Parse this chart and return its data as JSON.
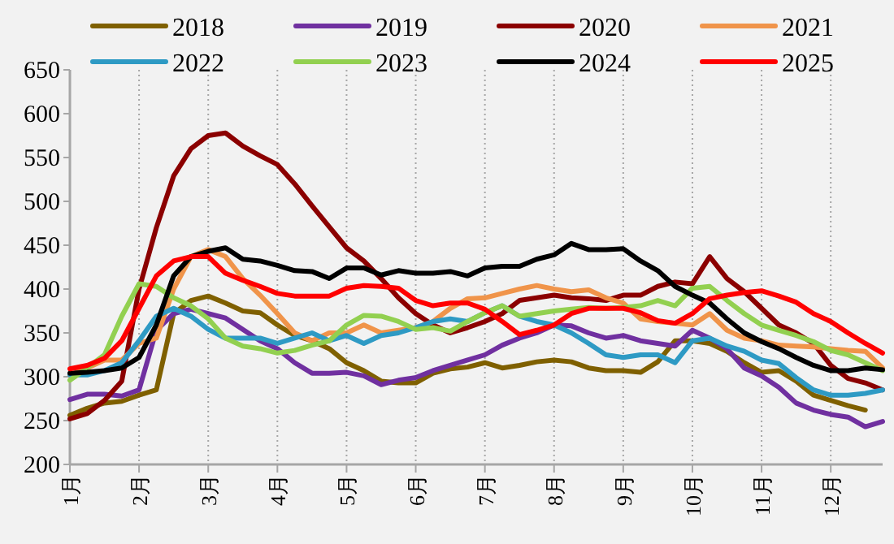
{
  "chart_data": {
    "type": "line",
    "x": [
      1,
      1.25,
      1.5,
      1.75,
      2,
      2.25,
      2.5,
      2.75,
      3,
      3.25,
      3.5,
      3.75,
      4,
      4.25,
      4.5,
      4.75,
      5,
      5.25,
      5.5,
      5.75,
      6,
      6.25,
      6.5,
      6.75,
      7,
      7.25,
      7.5,
      7.75,
      8,
      8.25,
      8.5,
      8.75,
      9,
      9.25,
      9.5,
      9.75,
      10,
      10.25,
      10.5,
      10.75,
      11,
      11.25,
      11.5,
      11.75,
      12,
      12.25,
      12.5,
      12.75
    ],
    "xlim": [
      1,
      12.75
    ],
    "xticks": [
      {
        "value": 1,
        "label": "1月"
      },
      {
        "value": 2,
        "label": "2月"
      },
      {
        "value": 3,
        "label": "3月"
      },
      {
        "value": 4,
        "label": "4月"
      },
      {
        "value": 5,
        "label": "5月"
      },
      {
        "value": 6,
        "label": "6月"
      },
      {
        "value": 7,
        "label": "7月"
      },
      {
        "value": 8,
        "label": "8月"
      },
      {
        "value": 9,
        "label": "9月"
      },
      {
        "value": 10,
        "label": "10月"
      },
      {
        "value": 11,
        "label": "11月"
      },
      {
        "value": 12,
        "label": "12月"
      }
    ],
    "ylim": [
      200,
      650
    ],
    "yticks": [
      200,
      250,
      300,
      350,
      400,
      450,
      500,
      550,
      600,
      650
    ],
    "grid": "x",
    "legend": "top",
    "marker": "none",
    "line_style": "solid",
    "series": [
      {
        "name": "2018",
        "color": "#7f6000",
        "values": [
          256,
          264,
          270,
          272,
          279,
          285,
          372,
          387,
          392,
          384,
          375,
          373,
          359,
          347,
          341,
          332,
          316,
          307,
          295,
          293,
          293,
          304,
          309,
          311,
          316,
          310,
          313,
          317,
          319,
          317,
          310,
          307,
          307,
          305,
          317,
          341,
          341,
          338,
          329,
          316,
          305,
          307,
          295,
          279,
          273,
          267,
          262,
          null
        ]
      },
      {
        "name": "2019",
        "color": "#7030a0",
        "values": [
          274,
          280,
          280,
          278,
          285,
          353,
          372,
          377,
          372,
          367,
          354,
          341,
          332,
          316,
          304,
          304,
          305,
          301,
          291,
          296,
          299,
          307,
          313,
          319,
          325,
          336,
          344,
          350,
          359,
          358,
          350,
          344,
          347,
          341,
          338,
          335,
          353,
          344,
          332,
          310,
          301,
          288,
          270,
          262,
          257,
          254,
          243,
          249
        ]
      },
      {
        "name": "2020",
        "color": "#8b0000",
        "values": [
          252,
          258,
          273,
          295,
          400,
          470,
          529,
          560,
          575,
          578,
          563,
          552,
          542,
          520,
          495,
          471,
          447,
          432,
          412,
          390,
          372,
          359,
          350,
          356,
          363,
          372,
          387,
          390,
          393,
          390,
          389,
          387,
          393,
          393,
          403,
          408,
          406,
          437,
          412,
          397,
          378,
          359,
          350,
          338,
          313,
          298,
          293,
          285
        ]
      },
      {
        "name": "2021",
        "color": "#f0944a",
        "values": [
          302,
          310,
          319,
          319,
          338,
          344,
          400,
          437,
          445,
          437,
          412,
          393,
          372,
          350,
          341,
          350,
          350,
          359,
          350,
          353,
          356,
          363,
          378,
          389,
          390,
          395,
          400,
          404,
          400,
          397,
          399,
          390,
          384,
          366,
          363,
          361,
          359,
          372,
          353,
          344,
          341,
          336,
          335,
          334,
          332,
          330,
          329,
          310
        ]
      },
      {
        "name": "2022",
        "color": "#2e9ac4",
        "values": [
          302,
          302,
          307,
          316,
          341,
          369,
          378,
          369,
          354,
          344,
          344,
          344,
          338,
          344,
          350,
          341,
          347,
          338,
          347,
          350,
          356,
          363,
          366,
          363,
          373,
          381,
          369,
          363,
          359,
          350,
          338,
          325,
          322,
          325,
          325,
          316,
          341,
          344,
          335,
          329,
          319,
          315,
          299,
          285,
          279,
          279,
          281,
          285
        ]
      },
      {
        "name": "2023",
        "color": "#92d050",
        "values": [
          296,
          310,
          325,
          369,
          406,
          403,
          390,
          381,
          366,
          344,
          335,
          332,
          327,
          330,
          336,
          341,
          359,
          370,
          369,
          363,
          354,
          356,
          352,
          363,
          373,
          381,
          369,
          372,
          375,
          377,
          379,
          378,
          379,
          381,
          387,
          381,
          401,
          403,
          387,
          372,
          359,
          353,
          347,
          340,
          330,
          325,
          316,
          307
        ]
      },
      {
        "name": "2024",
        "color": "#000000",
        "values": [
          304,
          305,
          307,
          310,
          322,
          359,
          415,
          437,
          443,
          447,
          434,
          432,
          427,
          421,
          420,
          412,
          424,
          424,
          416,
          421,
          418,
          418,
          420,
          415,
          424,
          426,
          426,
          434,
          439,
          452,
          445,
          445,
          446,
          432,
          421,
          403,
          393,
          384,
          366,
          350,
          340,
          332,
          322,
          313,
          307,
          307,
          310,
          308
        ]
      },
      {
        "name": "2025",
        "color": "#ff0000",
        "values": [
          309,
          313,
          321,
          341,
          378,
          415,
          432,
          437,
          437,
          418,
          410,
          403,
          395,
          392,
          392,
          392,
          401,
          404,
          403,
          401,
          387,
          381,
          384,
          384,
          377,
          363,
          348,
          353,
          359,
          372,
          378,
          378,
          378,
          373,
          364,
          361,
          372,
          389,
          393,
          396,
          398,
          392,
          385,
          372,
          363,
          350,
          338,
          327
        ]
      }
    ]
  }
}
